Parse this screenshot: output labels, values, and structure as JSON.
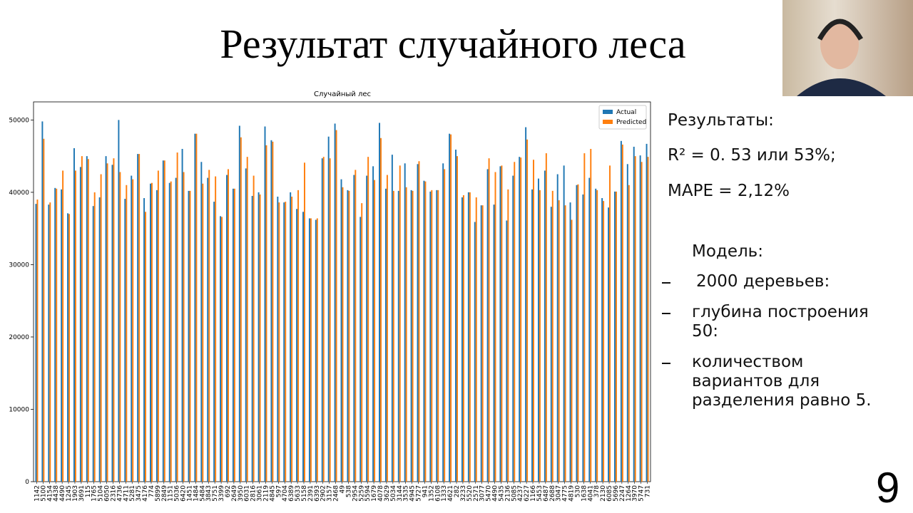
{
  "title": "Результат случайного леса",
  "chart_data": {
    "type": "bar",
    "title": "Случайный лес",
    "categories": [
      "1142",
      "5100",
      "4154",
      "4438",
      "4490",
      "1245",
      "1903",
      "3691",
      "115",
      "1765",
      "5104",
      "6050",
      "2316",
      "4736",
      "4711",
      "5281",
      "3475",
      "4176",
      "774",
      "5899",
      "2849",
      "1151",
      "5036",
      "6420",
      "1451",
      "1484",
      "5484",
      "3843",
      "5751",
      "3399",
      "692",
      "2649",
      "3950",
      "6031",
      "2816",
      "3061",
      "2119",
      "4845",
      "597",
      "4704",
      "6389",
      "5633",
      "5158",
      "2391",
      "6393",
      "2902",
      "3157",
      "2468",
      "49",
      "538",
      "2954",
      "5259",
      "5594",
      "1679",
      "4078",
      "3629",
      "5034",
      "3144",
      "3535",
      "4945",
      "5727",
      "941",
      "1352",
      "6108",
      "1333",
      "4621",
      "282",
      "3233",
      "5520",
      "2571",
      "3077",
      "5470",
      "4490",
      "5435",
      "2136",
      "5085",
      "4237",
      "6227",
      "1166",
      "5453",
      "6487",
      "2688",
      "3047",
      "4775",
      "4819",
      "530",
      "1638",
      "4041",
      "378",
      "2130",
      "6085",
      "5696",
      "2247",
      "1264",
      "3970",
      "5747",
      "731"
    ],
    "series": [
      {
        "name": "Actual",
        "color": "#1f77b4",
        "values": [
          38400,
          49800,
          38300,
          40600,
          40400,
          37100,
          46100,
          43500,
          45000,
          38100,
          39300,
          45000,
          43800,
          50000,
          39100,
          42300,
          45300,
          39200,
          41200,
          40300,
          44400,
          41300,
          42000,
          46000,
          40200,
          48100,
          44200,
          42000,
          38700,
          36700,
          42400,
          40500,
          49200,
          43300,
          39500,
          40000,
          49100,
          47200,
          39400,
          38600,
          40000,
          37700,
          37300,
          36400,
          36200,
          44700,
          47700,
          49500,
          41800,
          40300,
          42400,
          36600,
          42300,
          43600,
          49600,
          40500,
          45200,
          40200,
          44000,
          40300,
          43900,
          41600,
          40100,
          40300,
          44000,
          48100,
          45900,
          39300,
          40000,
          35900,
          38200,
          43200,
          38300,
          43600,
          36100,
          42300,
          44900,
          49000,
          40400,
          41900,
          43000,
          38000,
          42500,
          43700,
          38600,
          41000,
          39700,
          42000,
          40500,
          39200,
          37900,
          40100,
          47100,
          43900,
          46300,
          45100,
          46700
        ]
      },
      {
        "name": "Predicted",
        "color": "#ff7f0e",
        "values": [
          39000,
          47400,
          38600,
          40500,
          43000,
          37000,
          43000,
          45000,
          44600,
          40000,
          42500,
          44000,
          44700,
          42800,
          41000,
          41800,
          45300,
          37300,
          41300,
          43000,
          44400,
          41500,
          45500,
          42800,
          40200,
          48100,
          41200,
          43100,
          42200,
          36600,
          43200,
          40500,
          47600,
          44900,
          42300,
          39700,
          46500,
          47000,
          38600,
          38700,
          39400,
          40300,
          44100,
          36400,
          36400,
          44900,
          44700,
          48600,
          40700,
          40200,
          43100,
          38500,
          44900,
          41700,
          47500,
          42400,
          40200,
          43700,
          40700,
          40200,
          44300,
          41500,
          40300,
          40300,
          43200,
          48000,
          45000,
          39600,
          40000,
          39300,
          38200,
          44700,
          42800,
          43700,
          40400,
          44200,
          44800,
          47300,
          44500,
          40300,
          45400,
          40200,
          38900,
          38200,
          36200,
          41100,
          45400,
          46000,
          40300,
          38800,
          43700,
          40100,
          46600,
          41000,
          45000,
          44200,
          44900
        ]
      }
    ],
    "ylim": [
      0,
      52500
    ],
    "yticks": [
      0,
      10000,
      20000,
      30000,
      40000,
      50000
    ],
    "grid": false,
    "legend": "upper right"
  },
  "notes": {
    "results_heading": "Результаты:",
    "r2": "R² = 0. 53 или 53%;",
    "mape": "MAPE = 2,12%",
    "model_heading": "Модель:",
    "items": [
      "2000 деревьев:",
      "глубина построения 50:",
      "количеством вариантов для разделения равно 5."
    ]
  },
  "page_number": "9"
}
